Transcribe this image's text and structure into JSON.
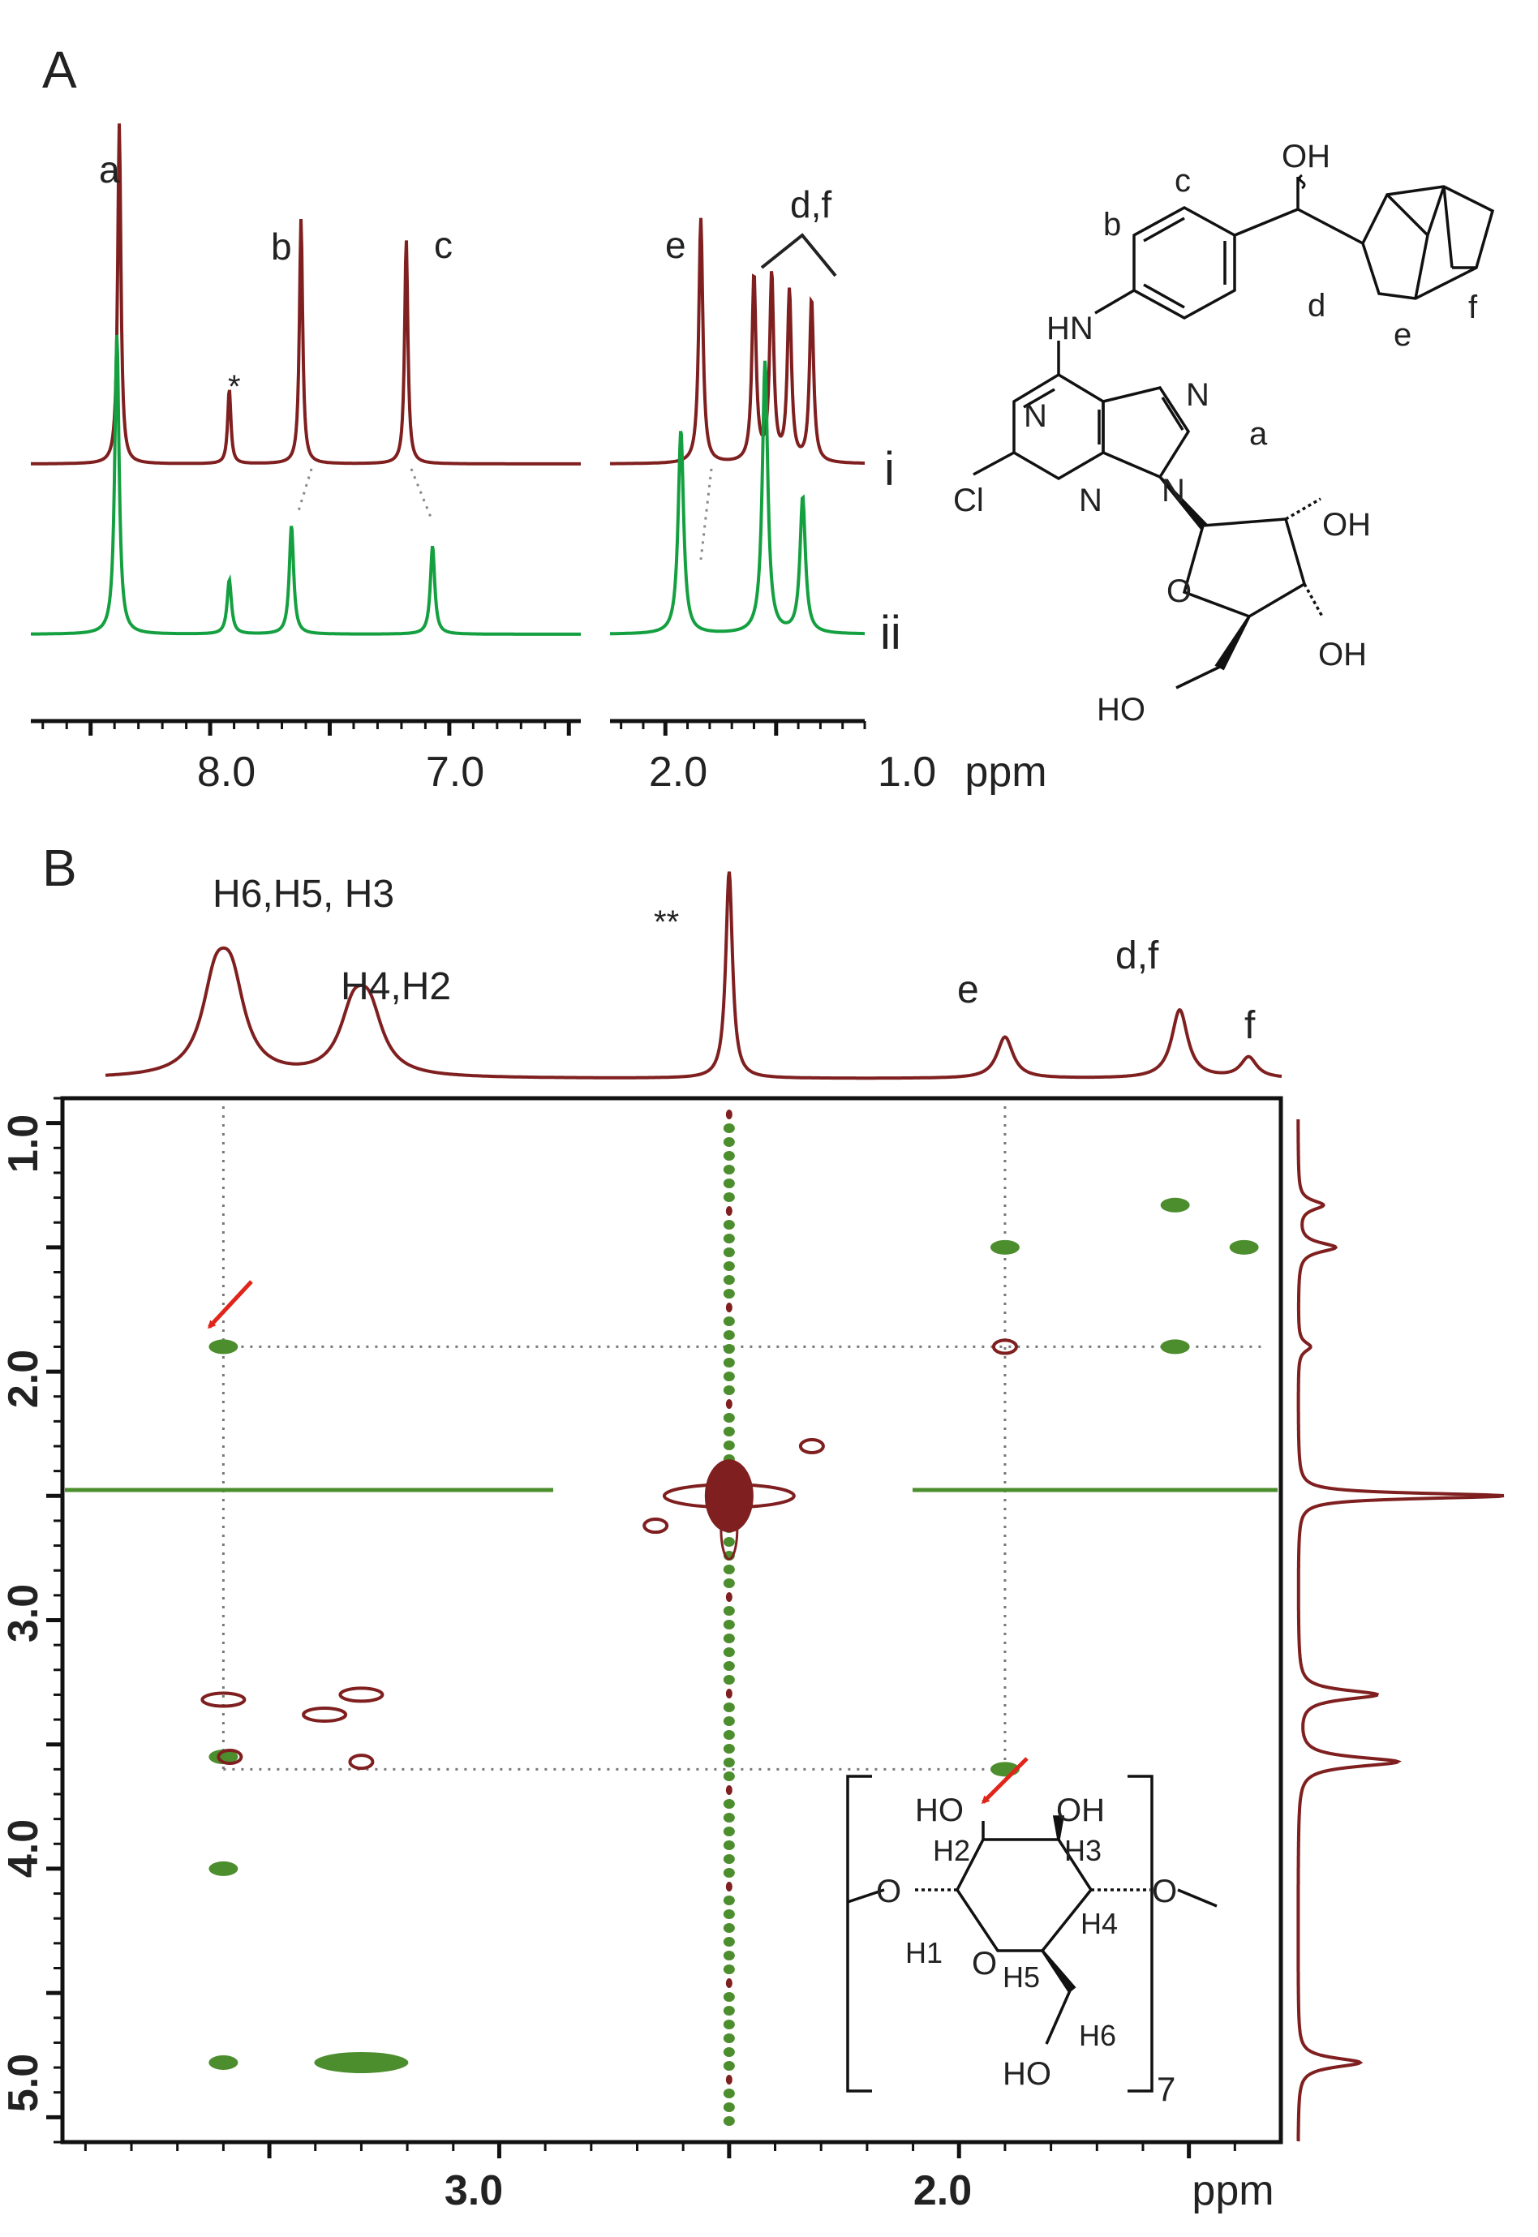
{
  "colors": {
    "spec_i": "#7f1f1f",
    "spec_ii": "#14a040",
    "cross_pos": "#4c8e2e",
    "cross_neg": "#7f1f1f",
    "arrow": "#e0251b",
    "frame": "#111111",
    "guide": "#777777"
  },
  "panel_A": {
    "label": "A",
    "xunit": "ppm",
    "ticks": [
      "8.0",
      "7.0",
      "2.0",
      "1.0"
    ],
    "trace_labels": [
      "i",
      "ii"
    ],
    "peak_labels": [
      "a",
      "*",
      "b",
      "c",
      "e",
      "d,f"
    ],
    "molecule": {
      "atoms": [
        "OH",
        "c",
        "b",
        "HN",
        "d",
        "f",
        "e",
        "N",
        "N",
        "a",
        "Cl",
        "N",
        "N",
        "OH",
        "O",
        "OH",
        "HO"
      ]
    }
  },
  "panel_B": {
    "label": "B",
    "top_labels": [
      "H6,H5, H3",
      "H4,H2",
      "**",
      "e",
      "d,f",
      "f"
    ],
    "xticks": [
      "3.0",
      "2.0"
    ],
    "yticks": [
      "1.0",
      "2.0",
      "3.0",
      "4.0",
      "5.0"
    ],
    "xunit": "ppm",
    "glucose": {
      "labels": [
        "HO",
        "OH",
        "H2",
        "H3",
        "O",
        "O",
        "H1",
        "H4",
        "O",
        "H5",
        "H6",
        "HO",
        "7"
      ]
    }
  },
  "chart_data": [
    {
      "type": "line",
      "title": "A",
      "xlabel": "ppm",
      "x_axis": "reversed",
      "x_segments": [
        [
          8.75,
          6.45
        ],
        [
          2.25,
          1.1
        ]
      ],
      "series": [
        {
          "name": "i",
          "peaks": [
            {
              "ppm": 8.38,
              "height": 1.0,
              "label": "a"
            },
            {
              "ppm": 7.92,
              "height": 0.22,
              "label": "*"
            },
            {
              "ppm": 7.62,
              "height": 0.72,
              "label": "b"
            },
            {
              "ppm": 7.18,
              "height": 0.66,
              "label": "c"
            },
            {
              "ppm": 1.84,
              "height": 0.72,
              "label": "e"
            },
            {
              "ppm": 1.6,
              "height": 0.55,
              "label": "d,f"
            },
            {
              "ppm": 1.52,
              "height": 0.55,
              "label": "d,f"
            },
            {
              "ppm": 1.44,
              "height": 0.5,
              "label": "d,f"
            },
            {
              "ppm": 1.34,
              "height": 0.48,
              "label": "d,f"
            }
          ]
        },
        {
          "name": "ii",
          "peaks": [
            {
              "ppm": 8.39,
              "height": 0.88,
              "label": "a"
            },
            {
              "ppm": 7.92,
              "height": 0.16,
              "label": "*"
            },
            {
              "ppm": 7.66,
              "height": 0.32,
              "label": "b"
            },
            {
              "ppm": 7.07,
              "height": 0.26,
              "label": "c"
            },
            {
              "ppm": 1.93,
              "height": 0.6,
              "label": "e"
            },
            {
              "ppm": 1.55,
              "height": 0.8,
              "label": "d,f"
            },
            {
              "ppm": 1.38,
              "height": 0.4,
              "label": "d,f"
            }
          ]
        }
      ]
    },
    {
      "type": "heatmap",
      "title": "B",
      "xlabel": "ppm",
      "x_range": [
        3.95,
        1.3
      ],
      "y_range": [
        0.9,
        5.1
      ],
      "top_projection_peaks": [
        {
          "ppm": 3.6,
          "height": 0.78,
          "label": "H6,H5, H3"
        },
        {
          "ppm": 3.3,
          "height": 0.55,
          "label": "H4,H2"
        },
        {
          "ppm": 2.5,
          "height": 1.0,
          "label": "**"
        },
        {
          "ppm": 1.9,
          "height": 0.2,
          "label": "e"
        },
        {
          "ppm": 1.52,
          "height": 0.33,
          "label": "d,f"
        },
        {
          "ppm": 1.37,
          "height": 0.1,
          "label": "f"
        }
      ],
      "cross_peaks": [
        {
          "x": 3.6,
          "y": 1.9,
          "sign": "positive",
          "arrow": true
        },
        {
          "x": 1.9,
          "y": 1.5,
          "sign": "positive"
        },
        {
          "x": 1.9,
          "y": 1.9,
          "sign": "negative"
        },
        {
          "x": 1.53,
          "y": 1.33,
          "sign": "positive"
        },
        {
          "x": 1.53,
          "y": 1.9,
          "sign": "positive"
        },
        {
          "x": 1.38,
          "y": 1.5,
          "sign": "positive"
        },
        {
          "x": 1.9,
          "y": 3.6,
          "sign": "positive",
          "arrow": true
        },
        {
          "x": 3.3,
          "y": 3.3,
          "sign": "negative"
        },
        {
          "x": 3.38,
          "y": 3.38,
          "sign": "negative"
        },
        {
          "x": 3.6,
          "y": 3.55,
          "sign": "both"
        },
        {
          "x": 3.6,
          "y": 3.32,
          "sign": "negative"
        },
        {
          "x": 3.3,
          "y": 3.57,
          "sign": "negative"
        },
        {
          "x": 3.6,
          "y": 4.0,
          "sign": "positive"
        },
        {
          "x": 3.6,
          "y": 4.78,
          "sign": "positive"
        },
        {
          "x": 3.3,
          "y": 4.78,
          "sign": "positive"
        },
        {
          "x": 2.5,
          "y": 2.5,
          "sign": "negative"
        },
        {
          "x": 2.66,
          "y": 2.62,
          "sign": "negative"
        },
        {
          "x": 2.32,
          "y": 2.3,
          "sign": "negative"
        }
      ]
    }
  ]
}
